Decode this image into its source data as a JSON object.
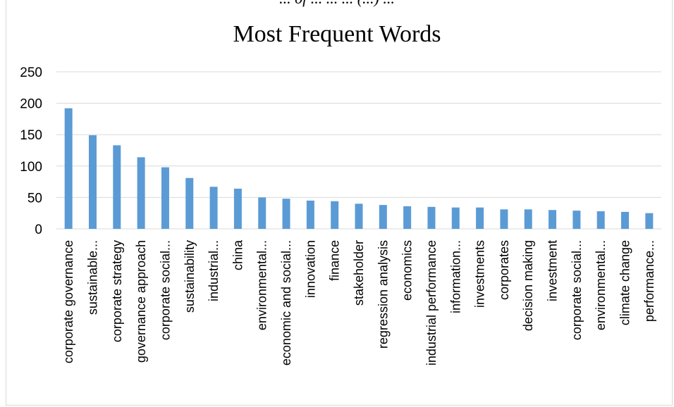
{
  "top_caption": "... of ... ... ... (...) ...",
  "chart_data": {
    "type": "bar",
    "title": "Most Frequent Words",
    "xlabel": "",
    "ylabel": "",
    "ylim": [
      0,
      250
    ],
    "yticks": [
      0,
      50,
      100,
      150,
      200,
      250
    ],
    "grid": true,
    "legend": "none",
    "bar_color": "#5b9bd5",
    "categories": [
      "corporate governance",
      "sustainable...",
      "corporate strategy",
      "governance approach",
      "corporate social...",
      "sustainability",
      "industrial...",
      "china",
      "environmental...",
      "economic and social...",
      "innovation",
      "finance",
      "stakeholder",
      "regression analysis",
      "economics",
      "industrial performance",
      "information...",
      "investments",
      "corporates",
      "decision making",
      "investment",
      "corporate social...",
      "environmental...",
      "climate change",
      "performance..."
    ],
    "values": [
      192,
      149,
      133,
      114,
      98,
      81,
      67,
      64,
      50,
      48,
      45,
      44,
      40,
      38,
      36,
      35,
      34,
      34,
      31,
      31,
      30,
      29,
      28,
      27,
      25
    ]
  }
}
